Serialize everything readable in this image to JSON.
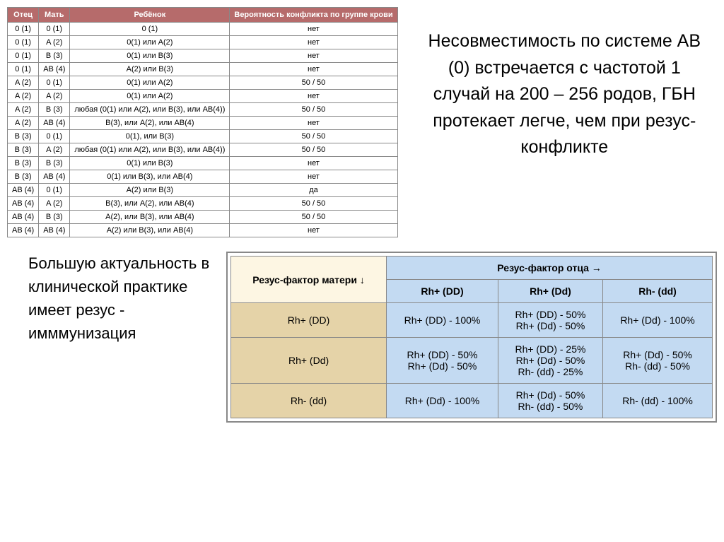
{
  "table1": {
    "headers": [
      "Отец",
      "Мать",
      "Ребёнок",
      "Вероятность конфликта по группе крови"
    ],
    "rows": [
      [
        "0 (1)",
        "0 (1)",
        "0 (1)",
        "нет"
      ],
      [
        "0 (1)",
        "A (2)",
        "0(1) или A(2)",
        "нет"
      ],
      [
        "0 (1)",
        "B (3)",
        "0(1) или B(3)",
        "нет"
      ],
      [
        "0 (1)",
        "AB (4)",
        "A(2) или B(3)",
        "нет"
      ],
      [
        "A (2)",
        "0 (1)",
        "0(1) или A(2)",
        "50 / 50"
      ],
      [
        "A (2)",
        "A (2)",
        "0(1) или A(2)",
        "нет"
      ],
      [
        "A (2)",
        "B (3)",
        "любая (0(1) или A(2), или B(3), или AB(4))",
        "50 / 50"
      ],
      [
        "A (2)",
        "AB (4)",
        "B(3), или A(2), или AB(4)",
        "нет"
      ],
      [
        "B (3)",
        "0 (1)",
        "0(1), или B(3)",
        "50 / 50"
      ],
      [
        "B (3)",
        "A (2)",
        "любая (0(1) или A(2), или B(3), или AB(4))",
        "50 / 50"
      ],
      [
        "B (3)",
        "B (3)",
        "0(1) или B(3)",
        "нет"
      ],
      [
        "B (3)",
        "AB (4)",
        "0(1) или B(3), или AB(4)",
        "нет"
      ],
      [
        "AB (4)",
        "0 (1)",
        "A(2) или B(3)",
        "да"
      ],
      [
        "AB (4)",
        "A (2)",
        "B(3), или A(2), или AB(4)",
        "50 / 50"
      ],
      [
        "AB (4)",
        "B (3)",
        "A(2), или B(3), или AB(4)",
        "50 / 50"
      ],
      [
        "AB (4)",
        "AB (4)",
        "A(2) или B(3), или AB(4)",
        "нет"
      ]
    ]
  },
  "main_text": "Несовместимость по системе АВ (0) встречается с частотой 1 случай на 200 – 256 родов, ГБН протекает легче, чем при резус-конфликте",
  "side_text": "Большую актуальность в клинической практике имеет резус - имммунизация",
  "table2": {
    "mother_label": "Резус-фактор матери ↓",
    "father_label": "Резус-фактор отца →",
    "father_cols": [
      "Rh+ (DD)",
      "Rh+ (Dd)",
      "Rh- (dd)"
    ],
    "rows": [
      {
        "mother": "Rh+ (DD)",
        "cells": [
          "Rh+ (DD) - 100%",
          "Rh+ (DD) - 50%\nRh+ (Dd) - 50%",
          "Rh+ (Dd) - 100%"
        ]
      },
      {
        "mother": "Rh+ (Dd)",
        "cells": [
          "Rh+ (DD) - 50%\nRh+ (Dd) - 50%",
          "Rh+ (DD) - 25%\nRh+ (Dd) - 50%\nRh- (dd) - 25%",
          "Rh+ (Dd) - 50%\nRh- (dd) - 50%"
        ]
      },
      {
        "mother": "Rh- (dd)",
        "cells": [
          "Rh+ (Dd) - 100%",
          "Rh+ (Dd) - 50%\nRh- (dd) - 50%",
          "Rh- (dd) - 100%"
        ]
      }
    ]
  }
}
